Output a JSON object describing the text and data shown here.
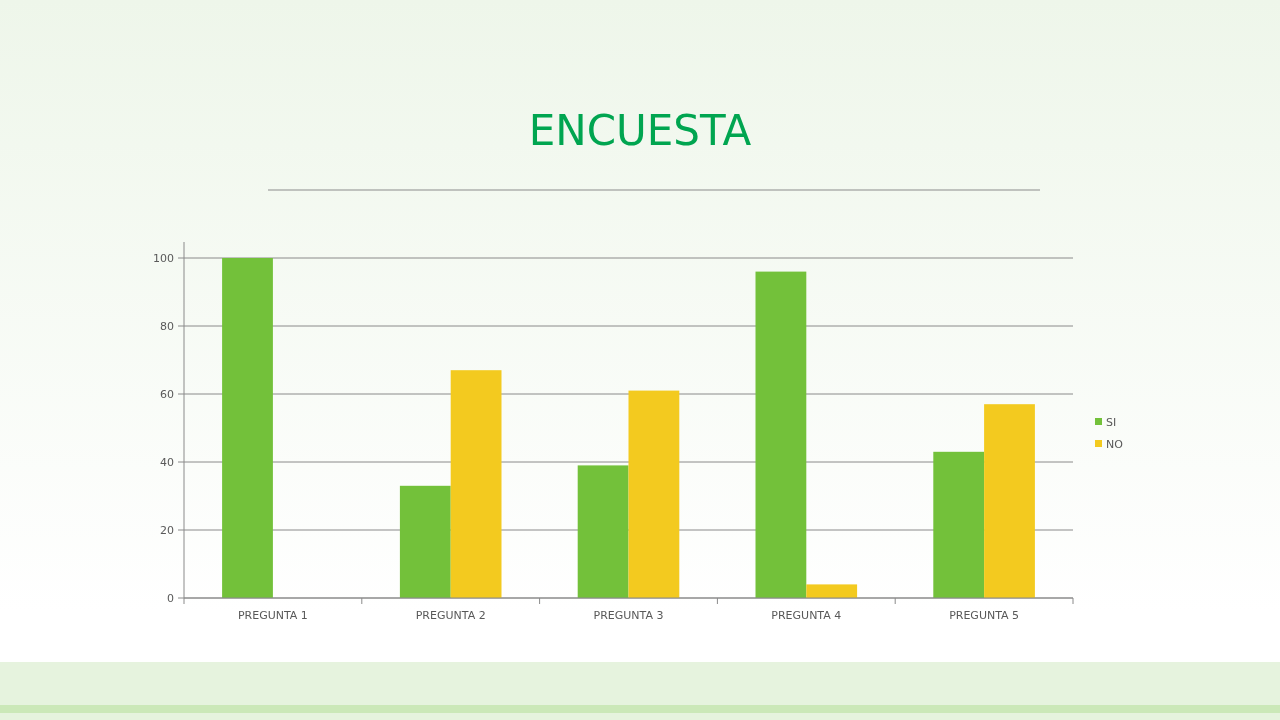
{
  "chart_data": {
    "type": "bar",
    "title": "ENCUESTA",
    "categories": [
      "PREGUNTA 1",
      "PREGUNTA 2",
      "PREGUNTA 3",
      "PREGUNTA 4",
      "PREGUNTA 5"
    ],
    "series": [
      {
        "name": "SI",
        "color": "#73c13a",
        "values": [
          100,
          33,
          39,
          96,
          43
        ]
      },
      {
        "name": "NO",
        "color": "#f3ca1f",
        "values": [
          0,
          67,
          61,
          4,
          57
        ]
      }
    ],
    "ylim": [
      0,
      100
    ],
    "yticks": [
      0,
      20,
      40,
      60,
      80,
      100
    ],
    "grid": "y",
    "legend": "right"
  }
}
